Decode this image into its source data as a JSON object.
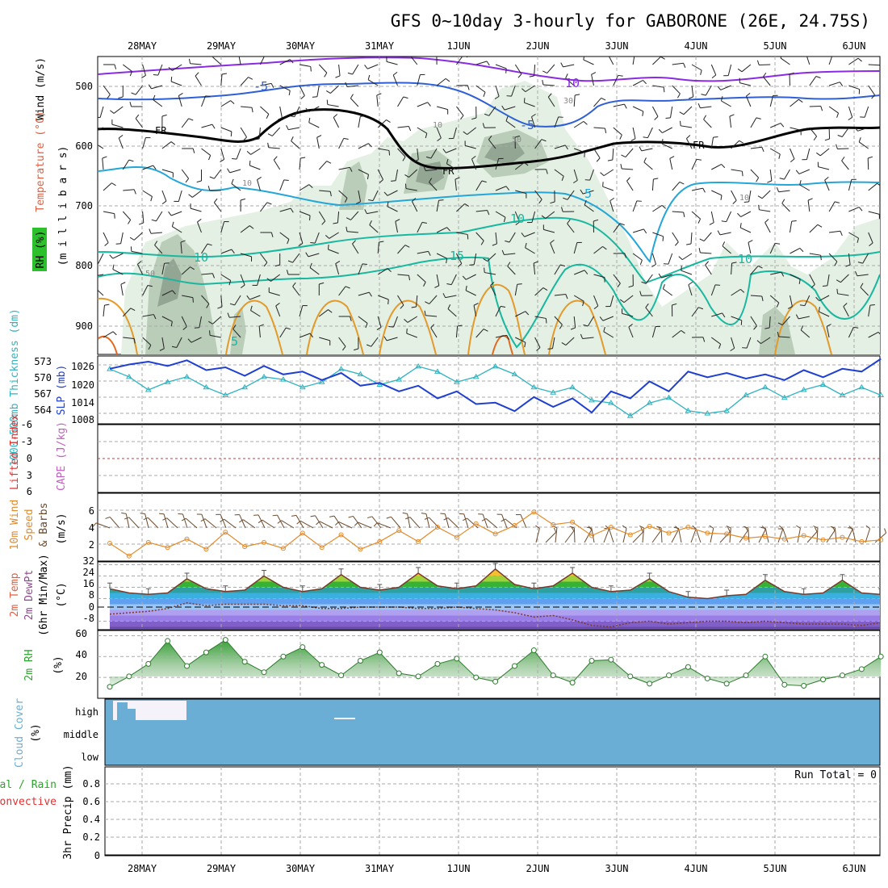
{
  "title": "GFS 0~10day 3-hourly for GABORONE (26E, 24.75S)",
  "dates": [
    "28MAY",
    "29MAY",
    "30MAY",
    "31MAY",
    "1JUN",
    "2JUN",
    "3JUN",
    "4JUN",
    "5JUN",
    "6JUN"
  ],
  "colors": {
    "temp_cold": "#2f5fd6",
    "temp_mid": "#24a7d8",
    "temp_warm": "#18b7a0",
    "temp_hot": "#e39a2a",
    "temp_hotter": "#e06a20",
    "freezing": "#000000",
    "purple": "#8a2be2",
    "rh_light": "#e3f0e3",
    "rh_mid": "#b9cdb9",
    "rh_dark": "#93a593",
    "slp": "#1f3fd0",
    "thickness": "#2fb3c0",
    "wind_speed": "#e28a2a",
    "barbs": "#6b4a2b",
    "rh2m": "#2ea42e",
    "cloud": "#6aaed6",
    "precip_total": "#2ea42e",
    "precip_conv": "#e03030"
  },
  "panels": {
    "upper_air": {
      "ylabel_wind": "Wind (m/s)",
      "ylabel_temp": "Temperature (°C)",
      "ylabel_rh": "RH (%)",
      "ylabel_pressure": "(m i l l i b a r s)",
      "pressure_ticks": [
        "500",
        "600",
        "700",
        "800",
        "900"
      ],
      "contour_labels": {
        "freezing": [
          "FR",
          "FR",
          "FR"
        ],
        "temps": [
          "-5",
          "-5",
          "10",
          "5",
          "10",
          "15",
          "10",
          "10",
          "5"
        ],
        "rh": [
          "30",
          "10",
          "50",
          "10",
          "50",
          "10"
        ]
      }
    },
    "slp_thickness": {
      "ylabel_slp": "SLP (mb)",
      "ylabel_thickness": "1000-500mb Thickness (dm)",
      "thickness_ticks": [
        "573",
        "570",
        "567",
        "564"
      ],
      "slp_ticks": [
        "1026",
        "1020",
        "1014",
        "1008"
      ]
    },
    "cape_li": {
      "ylabel_li": "Lifted Index",
      "ylabel_cape": "CAPE (J/kg)",
      "ticks": [
        "-6",
        "-3",
        "0",
        "3",
        "6"
      ]
    },
    "wind10m": {
      "ylabel_wind": "10m Wind",
      "ylabel_speed": "Speed",
      "ylabel_barbs": "& Barbs",
      "ylabel_units": "(m/s)",
      "ticks": [
        "6",
        "4",
        "2"
      ]
    },
    "temp2m": {
      "ylabel_temp": "2m Temp",
      "ylabel_dewpt": "2m DewPt",
      "ylabel_minmax": "(6hr Min/Max)",
      "ylabel_units": "(°C)",
      "ticks": [
        "32",
        "24",
        "16",
        "8",
        "0",
        "-8"
      ]
    },
    "rh2m": {
      "ylabel": "2m RH",
      "ylabel_units": "(%)",
      "ticks": [
        "60",
        "40",
        "20"
      ]
    },
    "cloud": {
      "ylabel": "Cloud Cover",
      "ylabel_units": "(%)",
      "levels": [
        "high",
        "middle",
        "low"
      ]
    },
    "precip": {
      "ylabel_total": "Total / Rain",
      "ylabel_conv": "Convective",
      "ylabel_units": "3hr Precip (mm)",
      "ticks": [
        "0.8",
        "0.6",
        "0.4",
        "0.2",
        "0"
      ],
      "run_total": "Run Total = 0"
    }
  },
  "chart_data": [
    {
      "type": "line",
      "name": "slp_thickness",
      "x_unit": "forecast hour",
      "y_axes": {
        "slp_mb": [
          1005,
          1029
        ],
        "thickness_dm": [
          561.5,
          574.5
        ]
      },
      "x": [
        0,
        6,
        12,
        18,
        24,
        30,
        36,
        42,
        48,
        54,
        60,
        66,
        72,
        78,
        84,
        90,
        96,
        102,
        108,
        114,
        120,
        126,
        132,
        138,
        144,
        150,
        156,
        162,
        168,
        174,
        180,
        186,
        192,
        198,
        204,
        210,
        216,
        222,
        228,
        234,
        240
      ],
      "series": [
        {
          "name": "SLP (mb)",
          "axis": "slp_mb",
          "values": [
            1024.5,
            1026,
            1027,
            1025.5,
            1027.5,
            1024,
            1025,
            1022,
            1025.5,
            1022.5,
            1023.5,
            1020.5,
            1023,
            1018.5,
            1019.5,
            1016.5,
            1018.5,
            1014,
            1016.5,
            1012,
            1012.5,
            1009.5,
            1014.5,
            1011,
            1014,
            1009,
            1016.5,
            1014,
            1020,
            1016.5,
            1023.5,
            1021.5,
            1023,
            1021,
            1022.5,
            1020.5,
            1024,
            1021.5,
            1024.5,
            1023.5,
            1028
          ]
        },
        {
          "name": "1000-500mb Thickness (dm)",
          "axis": "thickness_dm",
          "values": [
            572,
            570.5,
            568,
            569.5,
            570.5,
            568.5,
            567,
            568.5,
            570.5,
            570,
            568.5,
            569.5,
            572,
            571,
            569,
            570,
            572.5,
            571.5,
            569.5,
            570.5,
            572.5,
            571,
            568.5,
            567.5,
            568.5,
            566,
            565.5,
            563,
            565.5,
            566.5,
            564,
            563.5,
            564,
            567,
            568.5,
            566.5,
            568,
            569,
            567,
            568.5,
            567
          ]
        }
      ]
    },
    {
      "type": "line",
      "name": "wind10m_speed",
      "x_unit": "forecast hour",
      "ylim": [
        0,
        8
      ],
      "x": [
        0,
        6,
        12,
        18,
        24,
        30,
        36,
        42,
        48,
        54,
        60,
        66,
        72,
        78,
        84,
        90,
        96,
        102,
        108,
        114,
        120,
        126,
        132,
        138,
        144,
        150,
        156,
        162,
        168,
        174,
        180,
        186,
        192,
        198,
        204,
        210,
        216,
        222,
        228,
        234,
        240
      ],
      "series": [
        {
          "name": "Speed (m/s)",
          "values": [
            2.1,
            0.6,
            2.2,
            1.6,
            2.6,
            1.4,
            3.4,
            1.7,
            2.2,
            1.5,
            3.3,
            1.6,
            3.1,
            1.4,
            2.3,
            3.6,
            2.3,
            4,
            2.8,
            4.4,
            3.2,
            4.2,
            5.8,
            4.3,
            4.6,
            3,
            4,
            3.1,
            4.1,
            3.3,
            4,
            3.3,
            3.2,
            2.7,
            2.9,
            2.6,
            3,
            2.5,
            2.8,
            2.3,
            2.5
          ]
        }
      ]
    },
    {
      "type": "area",
      "name": "temp2m",
      "x_unit": "forecast hour",
      "ylim": [
        -14,
        34
      ],
      "x": [
        0,
        6,
        12,
        18,
        24,
        30,
        36,
        42,
        48,
        54,
        60,
        66,
        72,
        78,
        84,
        90,
        96,
        102,
        108,
        114,
        120,
        126,
        132,
        138,
        144,
        150,
        156,
        162,
        168,
        174,
        180,
        186,
        192,
        198,
        204,
        210,
        216,
        222,
        228,
        234,
        240
      ],
      "series": [
        {
          "name": "2m Temp",
          "values": [
            15,
            12,
            11,
            12,
            22,
            15,
            13,
            14,
            24,
            16,
            13,
            15,
            25,
            16,
            14,
            16,
            26,
            17,
            15,
            17,
            29,
            18,
            15,
            17,
            26,
            16,
            13,
            14,
            22,
            13,
            9,
            8,
            10,
            11,
            21,
            13,
            11,
            12,
            21,
            12,
            11
          ]
        },
        {
          "name": "2m DewPt",
          "values": [
            -3,
            -2,
            -1,
            1,
            5,
            3,
            4,
            4,
            4,
            3,
            3,
            1,
            1,
            2,
            2,
            2,
            1,
            1,
            2,
            1,
            0,
            -2,
            -5,
            -4,
            -7,
            -11,
            -12,
            -9,
            -8,
            -10,
            -9,
            -8,
            -8,
            -9,
            -8,
            -9,
            -10,
            -10,
            -10,
            -11,
            -9
          ]
        }
      ]
    },
    {
      "type": "area",
      "name": "rh2m",
      "x_unit": "forecast hour",
      "ylim": [
        0,
        65
      ],
      "x": [
        0,
        6,
        12,
        18,
        24,
        30,
        36,
        42,
        48,
        54,
        60,
        66,
        72,
        78,
        84,
        90,
        96,
        102,
        108,
        114,
        120,
        126,
        132,
        138,
        144,
        150,
        156,
        162,
        168,
        174,
        180,
        186,
        192,
        198,
        204,
        210,
        216,
        222,
        228,
        234,
        240
      ],
      "series": [
        {
          "name": "2m RH",
          "values": [
            11,
            21,
            33,
            55,
            31,
            44,
            56,
            35,
            25,
            40,
            49,
            32,
            22,
            36,
            44,
            24,
            21,
            33,
            38,
            20,
            16,
            31,
            46,
            22,
            15,
            36,
            37,
            21,
            14,
            22,
            30,
            19,
            14,
            22,
            40,
            13,
            12,
            18,
            22,
            28,
            40
          ]
        }
      ]
    },
    {
      "type": "line",
      "name": "precip3hr",
      "x_unit": "forecast hour",
      "ylim": [
        0,
        1
      ],
      "series": [
        {
          "name": "Total / Rain",
          "values": [
            0
          ]
        },
        {
          "name": "Convective",
          "values": [
            0
          ]
        }
      ]
    }
  ]
}
